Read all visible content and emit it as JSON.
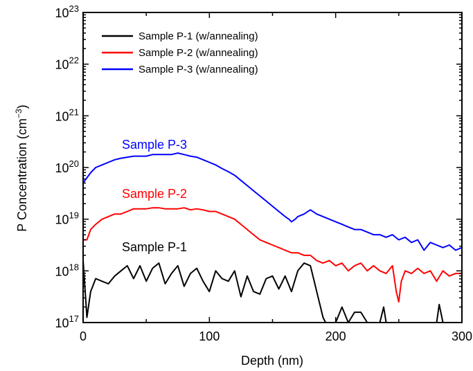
{
  "chart_data": {
    "type": "line",
    "xlabel": "Depth (nm)",
    "ylabel": "P Concentration (cm",
    "ylabel_sup": "−3",
    "ylabel_close": ")",
    "xlim": [
      0,
      300
    ],
    "ylim": [
      1e+17,
      1e+23
    ],
    "yscale": "log",
    "grid": false,
    "legend_position": "top-left",
    "x_ticks": [
      {
        "value": 0,
        "label": "0"
      },
      {
        "value": 100,
        "label": "100"
      },
      {
        "value": 200,
        "label": "200"
      },
      {
        "value": 300,
        "label": "300"
      }
    ],
    "y_ticks": [
      {
        "value": 17,
        "base": "10",
        "exp": "17"
      },
      {
        "value": 18,
        "base": "10",
        "exp": "18"
      },
      {
        "value": 19,
        "base": "10",
        "exp": "19"
      },
      {
        "value": 20,
        "base": "10",
        "exp": "20"
      },
      {
        "value": 21,
        "base": "10",
        "exp": "21"
      },
      {
        "value": 22,
        "base": "10",
        "exp": "22"
      },
      {
        "value": 23,
        "base": "10",
        "exp": "23"
      }
    ],
    "series": [
      {
        "name": "Sample P-1 (w/annealing)",
        "annotation": "Sample P-1",
        "color": "#000000",
        "x": [
          0,
          3,
          6,
          10,
          15,
          20,
          25,
          30,
          35,
          40,
          45,
          50,
          55,
          60,
          65,
          70,
          75,
          80,
          85,
          90,
          95,
          100,
          105,
          110,
          115,
          120,
          125,
          130,
          135,
          140,
          145,
          150,
          155,
          160,
          165,
          170,
          175,
          180,
          183,
          185,
          188,
          190,
          192,
          195,
          198,
          200,
          205,
          210,
          215,
          220,
          225,
          230,
          235,
          238,
          240,
          245,
          250,
          255,
          260,
          265,
          270,
          275,
          280,
          282,
          285,
          290,
          295,
          300
        ],
        "y": [
          18.2,
          17.1,
          17.6,
          17.85,
          17.8,
          17.75,
          17.9,
          18.0,
          18.1,
          17.85,
          18.1,
          17.8,
          18.05,
          18.15,
          17.75,
          17.95,
          18.1,
          17.7,
          17.95,
          18.05,
          17.8,
          17.6,
          18.0,
          17.85,
          17.8,
          18.0,
          17.5,
          17.9,
          17.6,
          17.55,
          17.85,
          17.9,
          17.65,
          17.9,
          17.6,
          18.0,
          18.15,
          18.1,
          17.8,
          17.6,
          17.3,
          17.1,
          17.0,
          17.0,
          17.0,
          17.0,
          17.3,
          17.0,
          17.2,
          17.2,
          17.0,
          17.0,
          17.0,
          17.3,
          17.0,
          17.0,
          17.0,
          17.0,
          17.0,
          17.0,
          17.0,
          17.0,
          17.0,
          17.35,
          17.0,
          17.0,
          17.0,
          17.0
        ]
      },
      {
        "name": "Sample P-2 (w/annealing)",
        "annotation": "Sample P-2",
        "color": "#ff0000",
        "x": [
          0,
          3,
          6,
          10,
          15,
          20,
          25,
          30,
          35,
          40,
          45,
          50,
          55,
          60,
          65,
          70,
          75,
          80,
          85,
          90,
          95,
          100,
          105,
          110,
          115,
          120,
          125,
          130,
          135,
          140,
          145,
          150,
          155,
          160,
          165,
          170,
          175,
          180,
          185,
          190,
          195,
          200,
          205,
          210,
          215,
          220,
          225,
          230,
          235,
          240,
          245,
          248,
          250,
          252,
          255,
          260,
          265,
          270,
          275,
          280,
          285,
          290,
          295,
          300
        ],
        "y": [
          18.6,
          18.6,
          18.8,
          18.9,
          19.0,
          19.05,
          19.1,
          19.1,
          19.15,
          19.2,
          19.2,
          19.2,
          19.22,
          19.22,
          19.2,
          19.2,
          19.2,
          19.22,
          19.18,
          19.2,
          19.18,
          19.15,
          19.15,
          19.1,
          19.05,
          19.0,
          18.9,
          18.8,
          18.7,
          18.6,
          18.55,
          18.5,
          18.45,
          18.4,
          18.35,
          18.35,
          18.3,
          18.3,
          18.2,
          18.15,
          18.2,
          18.1,
          18.15,
          18.0,
          18.1,
          18.15,
          18.0,
          18.1,
          18.0,
          17.95,
          18.1,
          17.6,
          17.4,
          17.8,
          18.0,
          17.95,
          18.05,
          17.95,
          18.0,
          17.8,
          18.0,
          17.9,
          17.95,
          17.95
        ]
      },
      {
        "name": "Sample P-3 (w/annealing)",
        "annotation": "Sample P-3",
        "color": "#0000ff",
        "x": [
          0,
          3,
          6,
          10,
          15,
          20,
          25,
          30,
          35,
          40,
          45,
          50,
          55,
          60,
          65,
          70,
          75,
          80,
          85,
          90,
          95,
          100,
          105,
          110,
          115,
          120,
          125,
          130,
          135,
          140,
          145,
          150,
          155,
          160,
          163,
          165,
          168,
          170,
          175,
          180,
          185,
          190,
          195,
          200,
          205,
          210,
          215,
          220,
          225,
          230,
          235,
          240,
          245,
          250,
          255,
          260,
          265,
          270,
          275,
          280,
          285,
          290,
          295,
          300
        ],
        "y": [
          19.7,
          19.8,
          19.9,
          20.0,
          20.05,
          20.1,
          20.15,
          20.18,
          20.2,
          20.22,
          20.22,
          20.22,
          20.25,
          20.25,
          20.25,
          20.25,
          20.28,
          20.25,
          20.22,
          20.2,
          20.15,
          20.1,
          20.05,
          19.98,
          19.92,
          19.85,
          19.75,
          19.65,
          19.55,
          19.45,
          19.35,
          19.25,
          19.15,
          19.05,
          19.0,
          18.95,
          19.0,
          19.05,
          19.1,
          19.18,
          19.1,
          19.05,
          19.0,
          18.95,
          18.9,
          18.85,
          18.8,
          18.8,
          18.75,
          18.7,
          18.7,
          18.65,
          18.7,
          18.6,
          18.65,
          18.55,
          18.6,
          18.4,
          18.55,
          18.5,
          18.45,
          18.5,
          18.4,
          18.45
        ]
      }
    ]
  }
}
